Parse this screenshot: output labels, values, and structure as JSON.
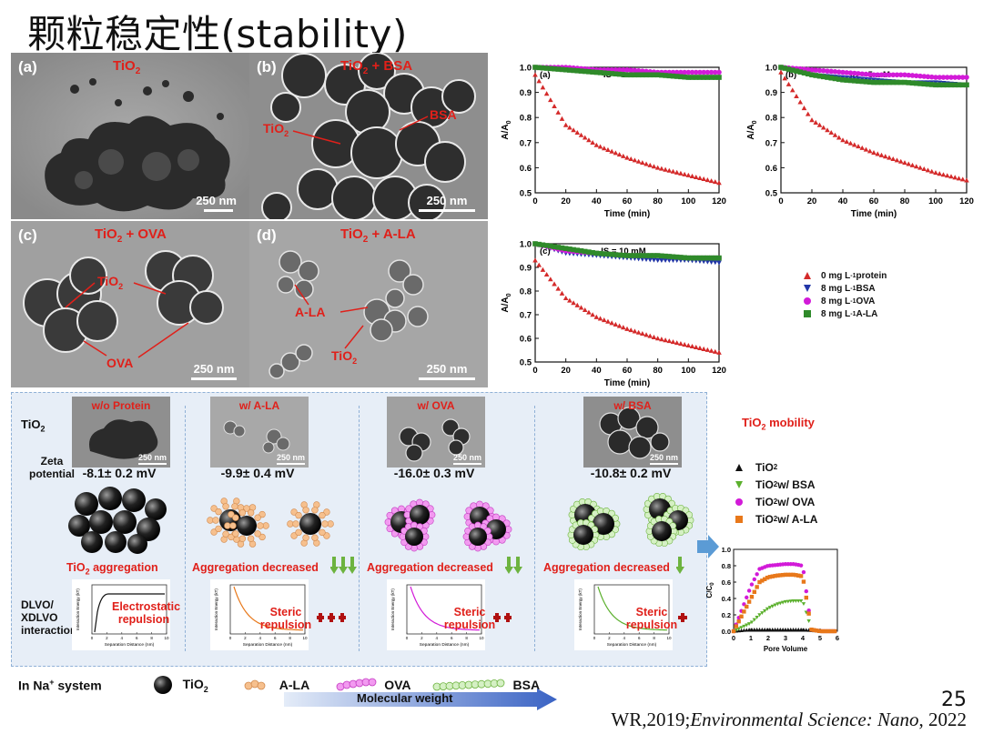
{
  "title": "颗粒稳定性(stability)",
  "tem_panels": [
    {
      "label": "(a)",
      "title_main": "TiO",
      "title_sub": "2",
      "title_rest": "",
      "scale": "250 nm"
    },
    {
      "label": "(b)",
      "title_main": "TiO",
      "title_sub": "2",
      "title_rest": " + BSA",
      "scale": "250 nm",
      "annotations": [
        "TiO",
        "BSA"
      ]
    },
    {
      "label": "(c)",
      "title_main": "TiO",
      "title_sub": "2",
      "title_rest": " + OVA",
      "scale": "250 nm",
      "annotations": [
        "TiO",
        "OVA"
      ]
    },
    {
      "label": "(d)",
      "title_main": "TiO",
      "title_sub": "2",
      "title_rest": " + A-LA",
      "scale": "250 nm",
      "annotations": [
        "A-LA",
        "TiO"
      ]
    }
  ],
  "chart_data": [
    {
      "type": "scatter",
      "panel": "(a)",
      "title": "IS = 1 mM",
      "xlabel": "Time (min)",
      "ylabel": "A/A0",
      "xlim": [
        0,
        120
      ],
      "ylim": [
        0.5,
        1.0
      ],
      "xticks": [
        0,
        20,
        40,
        60,
        80,
        100,
        120
      ],
      "yticks": [
        0.5,
        0.6,
        0.7,
        0.8,
        0.9,
        1.0
      ],
      "series": [
        {
          "name": "0 mg L-1 protein",
          "color": "#d42a2a",
          "marker": "triangle-up",
          "x": [
            0,
            20,
            40,
            60,
            80,
            100,
            120
          ],
          "y": [
            0.97,
            0.77,
            0.69,
            0.64,
            0.6,
            0.57,
            0.54
          ]
        },
        {
          "name": "8 mg L-1 BSA",
          "color": "#2236a8",
          "marker": "triangle-down",
          "x": [
            0,
            20,
            40,
            60,
            80,
            100,
            120
          ],
          "y": [
            1.0,
            0.99,
            0.98,
            0.97,
            0.97,
            0.96,
            0.96
          ]
        },
        {
          "name": "8 mg L-1 OVA",
          "color": "#d21ad8",
          "marker": "circle",
          "x": [
            0,
            20,
            40,
            60,
            80,
            100,
            120
          ],
          "y": [
            1.0,
            1.0,
            0.99,
            0.99,
            0.98,
            0.98,
            0.98
          ]
        },
        {
          "name": "8 mg L-1 A-LA",
          "color": "#2f8a2a",
          "marker": "square",
          "x": [
            0,
            20,
            40,
            60,
            80,
            100,
            120
          ],
          "y": [
            1.0,
            0.99,
            0.98,
            0.97,
            0.97,
            0.96,
            0.96
          ]
        }
      ]
    },
    {
      "type": "scatter",
      "panel": "(b)",
      "title": "IS = 5 mM",
      "xlabel": "Time (min)",
      "ylabel": "A/A0",
      "xlim": [
        0,
        120
      ],
      "ylim": [
        0.5,
        1.0
      ],
      "xticks": [
        0,
        20,
        40,
        60,
        80,
        100,
        120
      ],
      "yticks": [
        0.5,
        0.6,
        0.7,
        0.8,
        0.9,
        1.0
      ],
      "series": [
        {
          "name": "0 mg L-1 protein",
          "color": "#d42a2a",
          "marker": "triangle-up",
          "x": [
            0,
            20,
            40,
            60,
            80,
            100,
            120
          ],
          "y": [
            0.98,
            0.79,
            0.71,
            0.66,
            0.62,
            0.58,
            0.55
          ]
        },
        {
          "name": "8 mg L-1 BSA",
          "color": "#2236a8",
          "marker": "triangle-down",
          "x": [
            0,
            20,
            40,
            60,
            80,
            100,
            120
          ],
          "y": [
            1.0,
            0.97,
            0.96,
            0.95,
            0.94,
            0.94,
            0.93
          ]
        },
        {
          "name": "8 mg L-1 OVA",
          "color": "#d21ad8",
          "marker": "circle",
          "x": [
            0,
            20,
            40,
            60,
            80,
            100,
            120
          ],
          "y": [
            1.0,
            0.99,
            0.98,
            0.97,
            0.97,
            0.96,
            0.96
          ]
        },
        {
          "name": "8 mg L-1 A-LA",
          "color": "#2f8a2a",
          "marker": "square",
          "x": [
            0,
            20,
            40,
            60,
            80,
            100,
            120
          ],
          "y": [
            1.0,
            0.97,
            0.95,
            0.94,
            0.94,
            0.93,
            0.93
          ]
        }
      ]
    },
    {
      "type": "scatter",
      "panel": "(c)",
      "title": "IS = 10 mM",
      "xlabel": "Time (min)",
      "ylabel": "A/A0",
      "xlim": [
        0,
        120
      ],
      "ylim": [
        0.5,
        1.0
      ],
      "xticks": [
        0,
        20,
        40,
        60,
        80,
        100,
        120
      ],
      "yticks": [
        0.5,
        0.6,
        0.7,
        0.8,
        0.9,
        1.0
      ],
      "series": [
        {
          "name": "0 mg L-1 protein",
          "color": "#d42a2a",
          "marker": "triangle-up",
          "x": [
            0,
            20,
            40,
            60,
            80,
            100,
            120
          ],
          "y": [
            0.93,
            0.77,
            0.69,
            0.64,
            0.6,
            0.57,
            0.54
          ]
        },
        {
          "name": "8 mg L-1 BSA",
          "color": "#2236a8",
          "marker": "triangle-down",
          "x": [
            0,
            20,
            40,
            60,
            80,
            100,
            120
          ],
          "y": [
            1.0,
            0.96,
            0.95,
            0.94,
            0.93,
            0.93,
            0.92
          ]
        },
        {
          "name": "8 mg L-1 OVA",
          "color": "#d21ad8",
          "marker": "circle",
          "x": [
            0,
            20,
            40,
            60,
            80,
            100,
            120
          ],
          "y": [
            1.0,
            0.97,
            0.96,
            0.95,
            0.95,
            0.94,
            0.94
          ]
        },
        {
          "name": "8 mg L-1 A-LA",
          "color": "#2f8a2a",
          "marker": "square",
          "x": [
            0,
            20,
            40,
            60,
            80,
            100,
            120
          ],
          "y": [
            1.0,
            0.98,
            0.96,
            0.95,
            0.95,
            0.94,
            0.94
          ]
        }
      ]
    },
    {
      "type": "scatter",
      "xlabel": "Pore Volume",
      "ylabel": "C/C0",
      "xlim": [
        0,
        6
      ],
      "ylim": [
        0,
        1.0
      ],
      "xticks": [
        0,
        1,
        2,
        3,
        4,
        5,
        6
      ],
      "yticks": [
        0.0,
        0.2,
        0.4,
        0.6,
        0.8,
        1.0
      ],
      "series": [
        {
          "name": "TiO2",
          "color": "#111111",
          "marker": "triangle-up",
          "x": [
            0,
            1,
            1.5,
            2,
            2.5,
            3,
            3.5,
            4,
            4.5,
            5,
            5.5,
            6
          ],
          "y": [
            0,
            0.02,
            0.02,
            0.02,
            0.02,
            0.02,
            0.02,
            0.02,
            0.01,
            0.0,
            0.0,
            0.0
          ]
        },
        {
          "name": "TiO2 w/ BSA",
          "color": "#5bb02d",
          "marker": "triangle-down",
          "x": [
            0,
            1,
            1.5,
            2,
            2.5,
            3,
            3.5,
            4,
            4.5,
            5,
            5.5,
            6
          ],
          "y": [
            0,
            0.1,
            0.2,
            0.28,
            0.33,
            0.36,
            0.37,
            0.37,
            0.02,
            0.0,
            0.0,
            0.0
          ]
        },
        {
          "name": "TiO2 w/ OVA",
          "color": "#d21ad8",
          "marker": "circle",
          "x": [
            0,
            1,
            1.5,
            2,
            2.5,
            3,
            3.5,
            4,
            4.5,
            5,
            5.5,
            6
          ],
          "y": [
            0,
            0.55,
            0.76,
            0.8,
            0.81,
            0.82,
            0.82,
            0.8,
            0.02,
            0.0,
            0.0,
            0.0
          ]
        },
        {
          "name": "TiO2 w/ A-LA",
          "color": "#e8781a",
          "marker": "square",
          "x": [
            0,
            1,
            1.5,
            2,
            2.5,
            3,
            3.5,
            4,
            4.5,
            5,
            5.5,
            6
          ],
          "y": [
            0,
            0.4,
            0.6,
            0.66,
            0.68,
            0.69,
            0.69,
            0.67,
            0.02,
            0.0,
            0.0,
            0.0
          ]
        }
      ]
    }
  ],
  "ylabel_top": "A/A",
  "ylabel_sub": "0",
  "legend_a": [
    {
      "text_pre": "0 mg L",
      "sup": "-1",
      "text_post": " protein",
      "color": "#d42a2a",
      "marker": "triangle-up"
    },
    {
      "text_pre": "8 mg L",
      "sup": "-1",
      "text_post": " BSA",
      "color": "#2236a8",
      "marker": "triangle-down"
    },
    {
      "text_pre": "8 mg L",
      "sup": "-1",
      "text_post": " OVA",
      "color": "#d21ad8",
      "marker": "circle"
    },
    {
      "text_pre": "8 mg L",
      "sup": "-1",
      "text_post": " A-LA",
      "color": "#2f8a2a",
      "marker": "square"
    }
  ],
  "schematic": {
    "row_labels": {
      "tio2": "TiO",
      "tio2_sub": "2",
      "zeta": "Zeta potential",
      "dlvo": "DLVO/ XDLVO interaction"
    },
    "columns": [
      {
        "head": "w/o Protein",
        "zeta": "-8.1± 0.2 mV",
        "agg": "TiO2 aggregation",
        "plot_label_1": "Electrostatic",
        "plot_label_2": "repulsion",
        "scale": "250 nm",
        "crosses": 0
      },
      {
        "head": "w/ A-LA",
        "zeta": "-9.9± 0.4 mV",
        "agg": "Aggregation decreased",
        "plot_label_1": "Steric",
        "plot_label_2": "repulsion",
        "scale": "250 nm",
        "crosses": 3
      },
      {
        "head": "w/ OVA",
        "zeta": "-16.0± 0.3 mV",
        "agg": "Aggregation decreased",
        "plot_label_1": "Steric",
        "plot_label_2": "repulsion",
        "scale": "250 nm",
        "crosses": 2
      },
      {
        "head": "w/ BSA",
        "zeta": "-10.8± 0.2 mV",
        "agg": "Aggregation decreased",
        "plot_label_1": "Steric",
        "plot_label_2": "repulsion",
        "scale": "250 nm",
        "crosses": 1
      }
    ],
    "mini_plot_axis": {
      "x": "Separation Distance (nm)",
      "y": "Interaction Energy (kT)"
    }
  },
  "mobility": {
    "title": "TiO2 mobility",
    "legend": [
      {
        "pre": "TiO",
        "sub": "2",
        "post": "",
        "color": "#111111",
        "marker": "triangle-up"
      },
      {
        "pre": "TiO",
        "sub": "2",
        "post": " w/ BSA",
        "color": "#5bb02d",
        "marker": "triangle-down"
      },
      {
        "pre": "TiO",
        "sub": "2",
        "post": " w/ OVA",
        "color": "#d21ad8",
        "marker": "circle"
      },
      {
        "pre": "TiO",
        "sub": "2",
        "post": " w/ A-LA",
        "color": "#e8781a",
        "marker": "square"
      }
    ]
  },
  "bottom": {
    "system": "In Na",
    "system_sup": "+",
    "system_post": " system",
    "items": [
      "TiO2",
      "A-LA",
      "OVA",
      "BSA"
    ],
    "arrow_label": "Molecular weight"
  },
  "page_number": "25",
  "citation_pre": "WR,2019;",
  "citation_journal": "Environmental Science: Nano",
  "citation_post": ", 2022"
}
